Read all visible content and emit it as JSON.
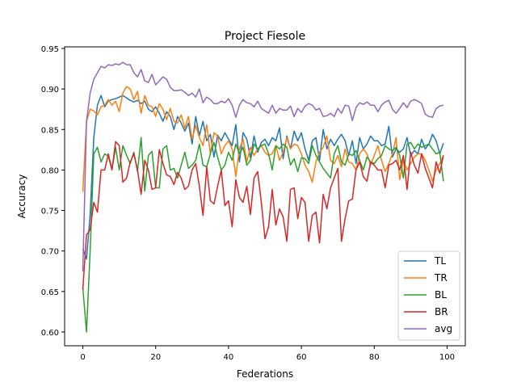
{
  "chart_data": {
    "type": "line",
    "title": "Project Fiesole",
    "xlabel": "Federations",
    "ylabel": "Accuracy",
    "xlim": [
      -5,
      105
    ],
    "ylim": [
      0.583,
      0.952
    ],
    "xticks": [
      0,
      20,
      40,
      60,
      80,
      100
    ],
    "yticks": [
      0.6,
      0.65,
      0.7,
      0.75,
      0.8,
      0.85,
      0.9,
      0.95
    ],
    "grid": false,
    "legend_position": "lower-right",
    "series": [
      {
        "name": "TL",
        "color": "#1f77b4",
        "values": [
          0.703,
          0.69,
          0.745,
          0.84,
          0.88,
          0.892,
          0.878,
          0.885,
          0.887,
          0.888,
          0.89,
          0.892,
          0.889,
          0.886,
          0.884,
          0.886,
          0.882,
          0.885,
          0.875,
          0.872,
          0.878,
          0.87,
          0.86,
          0.872,
          0.866,
          0.85,
          0.866,
          0.858,
          0.848,
          0.858,
          0.832,
          0.866,
          0.842,
          0.86,
          0.836,
          0.844,
          0.816,
          0.843,
          0.836,
          0.846,
          0.838,
          0.83,
          0.856,
          0.81,
          0.846,
          0.838,
          0.815,
          0.842,
          0.822,
          0.834,
          0.838,
          0.83,
          0.84,
          0.836,
          0.852,
          0.814,
          0.842,
          0.826,
          0.848,
          0.836,
          0.846,
          0.826,
          0.812,
          0.836,
          0.84,
          0.812,
          0.85,
          0.826,
          0.838,
          0.83,
          0.838,
          0.844,
          0.836,
          0.818,
          0.836,
          0.808,
          0.84,
          0.826,
          0.832,
          0.842,
          0.836,
          0.836,
          0.83,
          0.832,
          0.854,
          0.816,
          0.826,
          0.822,
          0.826,
          0.84,
          0.818,
          0.824,
          0.82,
          0.838,
          0.826,
          0.832,
          0.844,
          0.836,
          0.82,
          0.833
        ]
      },
      {
        "name": "TR",
        "color": "#ff7f0e",
        "values": [
          0.773,
          0.86,
          0.875,
          0.873,
          0.868,
          0.878,
          0.88,
          0.887,
          0.88,
          0.885,
          0.872,
          0.895,
          0.903,
          0.9,
          0.887,
          0.897,
          0.87,
          0.892,
          0.88,
          0.878,
          0.866,
          0.882,
          0.875,
          0.862,
          0.876,
          0.86,
          0.858,
          0.868,
          0.852,
          0.866,
          0.838,
          0.855,
          0.84,
          0.83,
          0.856,
          0.82,
          0.846,
          0.842,
          0.82,
          0.83,
          0.836,
          0.826,
          0.792,
          0.826,
          0.838,
          0.81,
          0.828,
          0.818,
          0.826,
          0.83,
          0.822,
          0.818,
          0.82,
          0.83,
          0.812,
          0.822,
          0.84,
          0.826,
          0.832,
          0.83,
          0.82,
          0.806,
          0.798,
          0.785,
          0.81,
          0.822,
          0.828,
          0.842,
          0.812,
          0.808,
          0.818,
          0.804,
          0.826,
          0.81,
          0.808,
          0.8,
          0.82,
          0.826,
          0.82,
          0.806,
          0.818,
          0.83,
          0.812,
          0.798,
          0.808,
          0.82,
          0.84,
          0.788,
          0.812,
          0.8,
          0.808,
          0.816,
          0.82,
          0.82,
          0.812,
          0.8,
          0.786,
          0.8,
          0.808,
          0.818
        ]
      },
      {
        "name": "BL",
        "color": "#2ca02c",
        "values": [
          0.655,
          0.6,
          0.7,
          0.82,
          0.828,
          0.81,
          0.82,
          0.817,
          0.8,
          0.828,
          0.8,
          0.83,
          0.818,
          0.808,
          0.822,
          0.798,
          0.84,
          0.774,
          0.818,
          0.823,
          0.778,
          0.778,
          0.826,
          0.83,
          0.8,
          0.802,
          0.79,
          0.806,
          0.822,
          0.802,
          0.806,
          0.812,
          0.832,
          0.806,
          0.804,
          0.82,
          0.834,
          0.816,
          0.8,
          0.806,
          0.822,
          0.812,
          0.832,
          0.82,
          0.828,
          0.806,
          0.812,
          0.832,
          0.826,
          0.83,
          0.832,
          0.82,
          0.8,
          0.83,
          0.826,
          0.832,
          0.828,
          0.806,
          0.814,
          0.798,
          0.815,
          0.814,
          0.808,
          0.83,
          0.818,
          0.81,
          0.802,
          0.796,
          0.79,
          0.82,
          0.83,
          0.81,
          0.806,
          0.82,
          0.818,
          0.824,
          0.812,
          0.8,
          0.816,
          0.81,
          0.808,
          0.814,
          0.818,
          0.83,
          0.826,
          0.824,
          0.828,
          0.818,
          0.79,
          0.832,
          0.834,
          0.826,
          0.832,
          0.828,
          0.83,
          0.832,
          0.826,
          0.82,
          0.822,
          0.786
        ]
      },
      {
        "name": "BR",
        "color": "#d62728",
        "values": [
          0.652,
          0.72,
          0.726,
          0.76,
          0.748,
          0.8,
          0.8,
          0.82,
          0.8,
          0.835,
          0.83,
          0.785,
          0.79,
          0.81,
          0.82,
          0.8,
          0.77,
          0.812,
          0.8,
          0.776,
          0.778,
          0.825,
          0.808,
          0.794,
          0.792,
          0.782,
          0.797,
          0.79,
          0.776,
          0.78,
          0.8,
          0.808,
          0.78,
          0.744,
          0.804,
          0.762,
          0.758,
          0.78,
          0.8,
          0.756,
          0.762,
          0.73,
          0.788,
          0.766,
          0.76,
          0.78,
          0.745,
          0.79,
          0.798,
          0.76,
          0.715,
          0.73,
          0.776,
          0.732,
          0.752,
          0.742,
          0.712,
          0.776,
          0.778,
          0.74,
          0.766,
          0.76,
          0.712,
          0.744,
          0.748,
          0.71,
          0.77,
          0.752,
          0.778,
          0.79,
          0.802,
          0.712,
          0.74,
          0.762,
          0.764,
          0.8,
          0.81,
          0.792,
          0.786,
          0.81,
          0.806,
          0.8,
          0.8,
          0.778,
          0.806,
          0.808,
          0.812,
          0.8,
          0.818,
          0.776,
          0.822,
          0.806,
          0.796,
          0.82,
          0.802,
          0.79,
          0.778,
          0.81,
          0.796,
          0.818
        ]
      },
      {
        "name": "avg",
        "color": "#9467bd",
        "values": [
          0.675,
          0.86,
          0.895,
          0.912,
          0.92,
          0.928,
          0.926,
          0.93,
          0.929,
          0.931,
          0.93,
          0.933,
          0.93,
          0.93,
          0.92,
          0.915,
          0.924,
          0.91,
          0.908,
          0.918,
          0.905,
          0.91,
          0.915,
          0.912,
          0.902,
          0.898,
          0.898,
          0.899,
          0.896,
          0.892,
          0.895,
          0.89,
          0.9,
          0.883,
          0.89,
          0.887,
          0.882,
          0.882,
          0.885,
          0.883,
          0.888,
          0.88,
          0.865,
          0.88,
          0.887,
          0.883,
          0.882,
          0.878,
          0.885,
          0.876,
          0.873,
          0.87,
          0.88,
          0.87,
          0.876,
          0.874,
          0.874,
          0.879,
          0.866,
          0.876,
          0.871,
          0.879,
          0.882,
          0.88,
          0.874,
          0.876,
          0.866,
          0.867,
          0.87,
          0.866,
          0.876,
          0.87,
          0.88,
          0.879,
          0.861,
          0.877,
          0.883,
          0.881,
          0.884,
          0.88,
          0.88,
          0.872,
          0.88,
          0.884,
          0.886,
          0.875,
          0.87,
          0.876,
          0.883,
          0.877,
          0.885,
          0.887,
          0.885,
          0.882,
          0.869,
          0.866,
          0.865,
          0.876,
          0.879,
          0.88
        ]
      }
    ]
  }
}
